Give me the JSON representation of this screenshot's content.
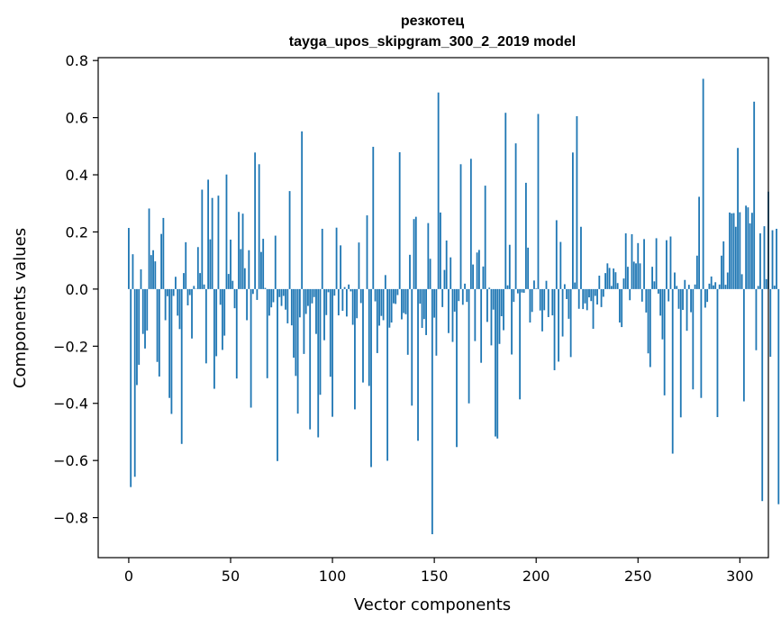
{
  "chart_data": {
    "type": "bar",
    "title": "резкотец",
    "subtitle": "tayga_upos_skipgram_300_2_2019 model",
    "xlabel": "Vector components",
    "ylabel": "Components values",
    "xlim": [
      -15,
      314
    ],
    "ylim": [
      -0.94,
      0.81
    ],
    "xticks": [
      0,
      50,
      100,
      150,
      200,
      250,
      300
    ],
    "yticks": [
      -0.8,
      -0.6,
      -0.4,
      -0.2,
      0.0,
      0.2,
      0.4,
      0.6,
      0.8
    ],
    "ytick_labels": [
      "−0.8",
      "−0.6",
      "−0.4",
      "−0.2",
      "0.0",
      "0.2",
      "0.4",
      "0.6",
      "0.8"
    ],
    "color": "#1f77b4",
    "grid": false,
    "values": [
      0.214,
      -0.693,
      0.122,
      -0.657,
      -0.336,
      -0.265,
      0.069,
      -0.157,
      -0.208,
      -0.145,
      0.282,
      0.119,
      0.136,
      0.097,
      -0.255,
      -0.306,
      0.193,
      0.249,
      -0.109,
      -0.025,
      -0.381,
      -0.437,
      -0.024,
      0.043,
      -0.093,
      -0.14,
      -0.542,
      0.056,
      0.164,
      -0.057,
      -0.021,
      -0.173,
      0.011,
      0.001,
      0.147,
      0.056,
      0.348,
      0.016,
      -0.26,
      0.383,
      0.174,
      0.319,
      -0.349,
      -0.235,
      0.327,
      -0.055,
      -0.213,
      -0.163,
      0.401,
      0.053,
      0.173,
      0.029,
      -0.067,
      -0.313,
      0.27,
      0.14,
      0.264,
      0.073,
      -0.109,
      0.136,
      -0.415,
      -0.017,
      0.478,
      -0.038,
      0.437,
      0.13,
      0.176,
      0.004,
      -0.312,
      -0.093,
      -0.064,
      -0.046,
      0.187,
      -0.602,
      -0.028,
      -0.059,
      -0.024,
      -0.072,
      -0.12,
      0.343,
      -0.127,
      -0.24,
      -0.304,
      -0.436,
      -0.099,
      0.552,
      -0.227,
      -0.087,
      -0.059,
      -0.491,
      -0.05,
      -0.028,
      -0.157,
      -0.519,
      -0.37,
      0.211,
      -0.179,
      -0.091,
      -0.011,
      -0.307,
      -0.447,
      -0.023,
      0.215,
      -0.092,
      0.153,
      -0.076,
      0.007,
      -0.096,
      0.016,
      -0.008,
      -0.125,
      -0.421,
      -0.102,
      0.163,
      -0.049,
      -0.327,
      0.0,
      0.258,
      -0.339,
      -0.623,
      0.498,
      -0.043,
      -0.224,
      -0.128,
      -0.094,
      -0.109,
      0.049,
      -0.601,
      -0.135,
      -0.117,
      -0.05,
      -0.052,
      -0.021,
      0.479,
      -0.106,
      -0.084,
      -0.088,
      -0.23,
      0.12,
      -0.408,
      0.245,
      0.253,
      -0.531,
      -0.051,
      -0.136,
      -0.105,
      -0.161,
      0.231,
      0.106,
      -0.858,
      -0.1,
      -0.233,
      0.688,
      0.268,
      -0.063,
      0.067,
      0.17,
      -0.154,
      0.111,
      -0.185,
      -0.079,
      -0.553,
      -0.042,
      0.437,
      -0.055,
      0.019,
      -0.045,
      -0.4,
      0.456,
      0.086,
      -0.182,
      0.128,
      0.137,
      -0.258,
      0.079,
      0.362,
      -0.115,
      0.005,
      -0.197,
      -0.072,
      -0.516,
      -0.523,
      -0.192,
      -0.095,
      -0.144,
      0.617,
      0.013,
      0.155,
      -0.229,
      -0.045,
      0.51,
      -0.015,
      -0.386,
      -0.012,
      -0.013,
      0.372,
      0.145,
      -0.117,
      -0.08,
      0.03,
      0.002,
      0.613,
      -0.075,
      -0.148,
      -0.074,
      0.029,
      -0.098,
      0.0,
      -0.092,
      -0.284,
      0.241,
      -0.254,
      0.165,
      -0.166,
      0.017,
      -0.035,
      -0.104,
      -0.238,
      0.478,
      0.023,
      0.605,
      -0.069,
      0.218,
      -0.07,
      -0.05,
      -0.074,
      -0.029,
      -0.042,
      -0.139,
      -0.024,
      -0.054,
      0.047,
      -0.063,
      -0.027,
      0.056,
      0.09,
      0.074,
      0.011,
      0.072,
      0.059,
      0.021,
      -0.117,
      -0.133,
      0.037,
      0.195,
      0.078,
      -0.039,
      0.192,
      0.096,
      0.09,
      0.161,
      0.09,
      -0.044,
      0.175,
      -0.082,
      -0.225,
      -0.273,
      0.078,
      0.027,
      0.178,
      -0.016,
      -0.093,
      -0.176,
      -0.372,
      0.171,
      -0.043,
      0.184,
      -0.576,
      0.058,
      0.011,
      -0.069,
      -0.449,
      -0.073,
      0.032,
      -0.146,
      0.015,
      -0.081,
      -0.351,
      0.016,
      0.117,
      0.323,
      -0.381,
      0.736,
      -0.065,
      -0.045,
      0.019,
      0.044,
      0.013,
      0.024,
      -0.448,
      0.016,
      0.117,
      0.167,
      0.015,
      0.058,
      0.268,
      0.265,
      0.266,
      0.218,
      0.494,
      0.269,
      0.052,
      -0.393,
      0.292,
      0.286,
      0.23,
      0.267,
      0.656,
      -0.214,
      0.011,
      0.195,
      -0.742,
      0.22,
      0.035,
      0.341,
      -0.237,
      0.206,
      0.012,
      0.211,
      -0.753
    ]
  }
}
